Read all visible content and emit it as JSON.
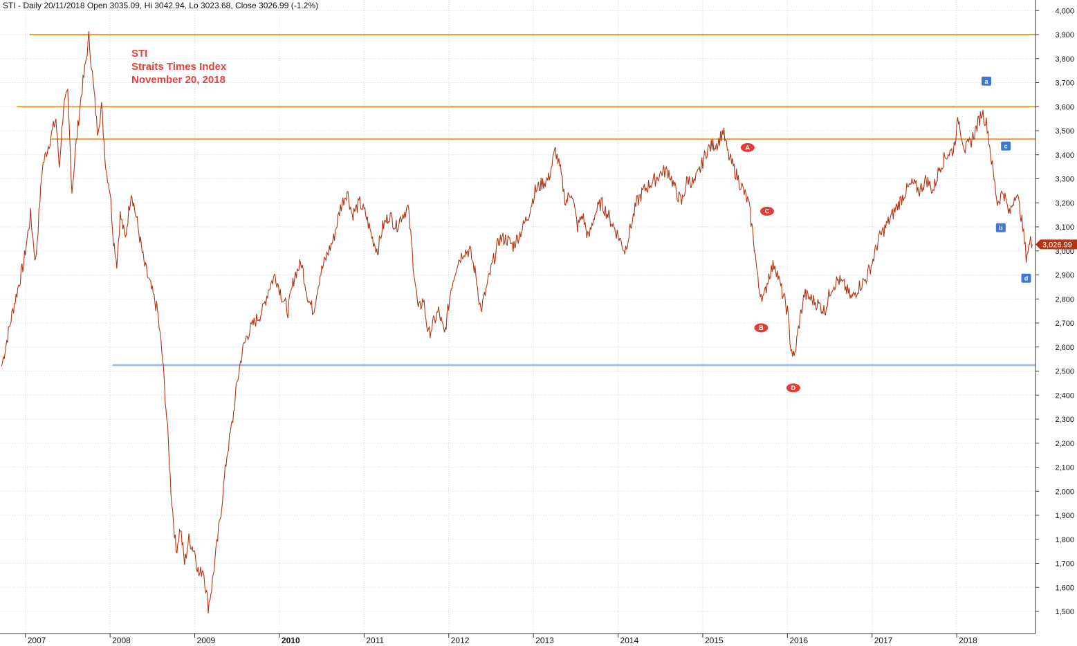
{
  "header": {
    "text": "STI - Daily 20/11/2018 Open 3035.09, Hi 3042.94, Lo 3023.68, Close 3026.99 (-1.2%)"
  },
  "annotation": {
    "lines": [
      "STI",
      "Straits Times Index",
      "November 20, 2018"
    ],
    "color": "#e8403a"
  },
  "colors": {
    "price": "#b03513",
    "resistance": "#f29a3c",
    "support": "#a3bde0",
    "grid": "#d6d6d6",
    "wave_marker_upper": "#e23c38",
    "wave_marker_lower": "#3f78d4"
  },
  "chart_data": {
    "type": "line",
    "y_axis": {
      "position": "right",
      "min": 1400,
      "max": 4000,
      "ticks": [
        1500,
        1600,
        1700,
        1800,
        1900,
        2000,
        2100,
        2200,
        2300,
        2400,
        2500,
        2600,
        2700,
        2800,
        2900,
        3000,
        3100,
        3200,
        3300,
        3400,
        3500,
        3600,
        3700,
        3800,
        3900,
        4000
      ],
      "tick_labels": [
        "1,500",
        "1,600",
        "1,700",
        "1,800",
        "1,900",
        "2,000",
        "2,100",
        "2,200",
        "2,300",
        "2,400",
        "2,500",
        "2,600",
        "2,700",
        "2,800",
        "2,900",
        "3,000",
        "3,100",
        "3,200",
        "3,300",
        "3,400",
        "3,500",
        "3,600",
        "3,700",
        "3,800",
        "3,900",
        "4,000"
      ]
    },
    "x_axis": {
      "min": 2006.7,
      "max": 2018.93,
      "ticks": [
        {
          "value": 2007,
          "label": "2007",
          "bold": false
        },
        {
          "value": 2008,
          "label": "2008",
          "bold": false
        },
        {
          "value": 2009,
          "label": "2009",
          "bold": false
        },
        {
          "value": 2010,
          "label": "2010",
          "bold": true
        },
        {
          "value": 2011,
          "label": "2011",
          "bold": false
        },
        {
          "value": 2012,
          "label": "2012",
          "bold": false
        },
        {
          "value": 2013,
          "label": "2013",
          "bold": false
        },
        {
          "value": 2014,
          "label": "2014",
          "bold": false
        },
        {
          "value": 2015,
          "label": "2015",
          "bold": false
        },
        {
          "value": 2016,
          "label": "2016",
          "bold": false
        },
        {
          "value": 2017,
          "label": "2017",
          "bold": false
        },
        {
          "value": 2018,
          "label": "2018",
          "bold": false
        }
      ]
    },
    "grid": true,
    "series": [
      {
        "color": "#b03513",
        "points": [
          [
            2006.72,
            2520
          ],
          [
            2006.85,
            2750
          ],
          [
            2006.98,
            2950
          ],
          [
            2007.06,
            3150
          ],
          [
            2007.12,
            2950
          ],
          [
            2007.2,
            3350
          ],
          [
            2007.28,
            3450
          ],
          [
            2007.36,
            3550
          ],
          [
            2007.4,
            3350
          ],
          [
            2007.45,
            3600
          ],
          [
            2007.5,
            3650
          ],
          [
            2007.55,
            3250
          ],
          [
            2007.6,
            3450
          ],
          [
            2007.66,
            3650
          ],
          [
            2007.7,
            3750
          ],
          [
            2007.75,
            3890
          ],
          [
            2007.8,
            3700
          ],
          [
            2007.85,
            3500
          ],
          [
            2007.9,
            3600
          ],
          [
            2007.95,
            3350
          ],
          [
            2008.0,
            3250
          ],
          [
            2008.04,
            3050
          ],
          [
            2008.08,
            2950
          ],
          [
            2008.12,
            3150
          ],
          [
            2008.18,
            3050
          ],
          [
            2008.25,
            3250
          ],
          [
            2008.33,
            3100
          ],
          [
            2008.4,
            2950
          ],
          [
            2008.48,
            2850
          ],
          [
            2008.56,
            2750
          ],
          [
            2008.62,
            2550
          ],
          [
            2008.68,
            2250
          ],
          [
            2008.72,
            2000
          ],
          [
            2008.78,
            1750
          ],
          [
            2008.83,
            1850
          ],
          [
            2008.88,
            1700
          ],
          [
            2008.93,
            1800
          ],
          [
            2009.0,
            1750
          ],
          [
            2009.05,
            1650
          ],
          [
            2009.1,
            1680
          ],
          [
            2009.16,
            1520
          ],
          [
            2009.2,
            1600
          ],
          [
            2009.27,
            1800
          ],
          [
            2009.32,
            1950
          ],
          [
            2009.38,
            2150
          ],
          [
            2009.45,
            2300
          ],
          [
            2009.5,
            2450
          ],
          [
            2009.56,
            2580
          ],
          [
            2009.62,
            2650
          ],
          [
            2009.7,
            2700
          ],
          [
            2009.8,
            2750
          ],
          [
            2009.88,
            2850
          ],
          [
            2009.95,
            2900
          ],
          [
            2010.04,
            2800
          ],
          [
            2010.1,
            2750
          ],
          [
            2010.18,
            2900
          ],
          [
            2010.26,
            2950
          ],
          [
            2010.34,
            2800
          ],
          [
            2010.4,
            2750
          ],
          [
            2010.48,
            2900
          ],
          [
            2010.56,
            2980
          ],
          [
            2010.64,
            3050
          ],
          [
            2010.72,
            3180
          ],
          [
            2010.8,
            3250
          ],
          [
            2010.86,
            3150
          ],
          [
            2010.95,
            3200
          ],
          [
            2011.02,
            3150
          ],
          [
            2011.1,
            3050
          ],
          [
            2011.16,
            3000
          ],
          [
            2011.22,
            3100
          ],
          [
            2011.3,
            3150
          ],
          [
            2011.38,
            3100
          ],
          [
            2011.45,
            3150
          ],
          [
            2011.52,
            3180
          ],
          [
            2011.58,
            2950
          ],
          [
            2011.64,
            2750
          ],
          [
            2011.7,
            2800
          ],
          [
            2011.76,
            2650
          ],
          [
            2011.82,
            2700
          ],
          [
            2011.88,
            2750
          ],
          [
            2011.95,
            2650
          ],
          [
            2012.03,
            2850
          ],
          [
            2012.1,
            2950
          ],
          [
            2012.18,
            3000
          ],
          [
            2012.25,
            3000
          ],
          [
            2012.32,
            2900
          ],
          [
            2012.38,
            2750
          ],
          [
            2012.45,
            2850
          ],
          [
            2012.52,
            2950
          ],
          [
            2012.6,
            3050
          ],
          [
            2012.68,
            3050
          ],
          [
            2012.76,
            3020
          ],
          [
            2012.85,
            3080
          ],
          [
            2012.94,
            3150
          ],
          [
            2013.02,
            3250
          ],
          [
            2013.1,
            3280
          ],
          [
            2013.18,
            3300
          ],
          [
            2013.26,
            3420
          ],
          [
            2013.32,
            3330
          ],
          [
            2013.38,
            3200
          ],
          [
            2013.45,
            3250
          ],
          [
            2013.52,
            3100
          ],
          [
            2013.58,
            3150
          ],
          [
            2013.65,
            3050
          ],
          [
            2013.72,
            3150
          ],
          [
            2013.8,
            3200
          ],
          [
            2013.88,
            3150
          ],
          [
            2013.95,
            3100
          ],
          [
            2014.02,
            3050
          ],
          [
            2014.08,
            3000
          ],
          [
            2014.15,
            3100
          ],
          [
            2014.22,
            3200
          ],
          [
            2014.3,
            3250
          ],
          [
            2014.38,
            3280
          ],
          [
            2014.45,
            3300
          ],
          [
            2014.52,
            3330
          ],
          [
            2014.6,
            3330
          ],
          [
            2014.68,
            3250
          ],
          [
            2014.75,
            3200
          ],
          [
            2014.82,
            3300
          ],
          [
            2014.9,
            3280
          ],
          [
            2014.98,
            3350
          ],
          [
            2015.05,
            3420
          ],
          [
            2015.12,
            3440
          ],
          [
            2015.18,
            3450
          ],
          [
            2015.24,
            3500
          ],
          [
            2015.3,
            3400
          ],
          [
            2015.36,
            3350
          ],
          [
            2015.42,
            3300
          ],
          [
            2015.48,
            3250
          ],
          [
            2015.54,
            3200
          ],
          [
            2015.6,
            3050
          ],
          [
            2015.66,
            2850
          ],
          [
            2015.72,
            2800
          ],
          [
            2015.78,
            2900
          ],
          [
            2015.85,
            2950
          ],
          [
            2015.92,
            2850
          ],
          [
            2016.0,
            2750
          ],
          [
            2016.04,
            2600
          ],
          [
            2016.08,
            2550
          ],
          [
            2016.14,
            2700
          ],
          [
            2016.2,
            2820
          ],
          [
            2016.28,
            2800
          ],
          [
            2016.36,
            2780
          ],
          [
            2016.44,
            2750
          ],
          [
            2016.52,
            2850
          ],
          [
            2016.6,
            2880
          ],
          [
            2016.68,
            2850
          ],
          [
            2016.76,
            2800
          ],
          [
            2016.84,
            2850
          ],
          [
            2016.92,
            2880
          ],
          [
            2017.0,
            2950
          ],
          [
            2017.08,
            3050
          ],
          [
            2017.16,
            3100
          ],
          [
            2017.24,
            3150
          ],
          [
            2017.32,
            3200
          ],
          [
            2017.4,
            3250
          ],
          [
            2017.48,
            3280
          ],
          [
            2017.56,
            3250
          ],
          [
            2017.64,
            3300
          ],
          [
            2017.72,
            3250
          ],
          [
            2017.8,
            3350
          ],
          [
            2017.88,
            3400
          ],
          [
            2017.96,
            3420
          ],
          [
            2018.02,
            3550
          ],
          [
            2018.06,
            3480
          ],
          [
            2018.1,
            3420
          ],
          [
            2018.16,
            3450
          ],
          [
            2018.22,
            3500
          ],
          [
            2018.3,
            3580
          ],
          [
            2018.36,
            3520
          ],
          [
            2018.42,
            3350
          ],
          [
            2018.48,
            3200
          ],
          [
            2018.55,
            3250
          ],
          [
            2018.62,
            3150
          ],
          [
            2018.7,
            3250
          ],
          [
            2018.76,
            3150
          ],
          [
            2018.82,
            2980
          ],
          [
            2018.88,
            3050
          ],
          [
            2018.89,
            3026.99
          ]
        ]
      }
    ],
    "reference_lines": [
      {
        "value": 3900,
        "x_start": 2007.05,
        "color": "#f29a3c"
      },
      {
        "value": 3600,
        "x_start": 2006.9,
        "color": "#f29a3c"
      },
      {
        "value": 3465,
        "x_start": 2007.3,
        "color": "#f29a3c"
      },
      {
        "value": 2525,
        "x_start": 2008.03,
        "color": "#a3bde0"
      }
    ],
    "wave_markers": [
      {
        "label": "A",
        "x": 2015.53,
        "y": 3430,
        "style": "red"
      },
      {
        "label": "B",
        "x": 2015.69,
        "y": 2680,
        "style": "red"
      },
      {
        "label": "C",
        "x": 2015.76,
        "y": 3165,
        "style": "red"
      },
      {
        "label": "D",
        "x": 2016.07,
        "y": 2430,
        "style": "red"
      },
      {
        "label": "a",
        "x": 2018.35,
        "y": 3705,
        "style": "blue"
      },
      {
        "label": "b",
        "x": 2018.52,
        "y": 3095,
        "style": "blue"
      },
      {
        "label": "c",
        "x": 2018.58,
        "y": 3435,
        "style": "blue"
      },
      {
        "label": "d",
        "x": 2018.82,
        "y": 2885,
        "style": "blue"
      }
    ],
    "last_value": {
      "value": 3026.99,
      "label": "3,026.99"
    }
  }
}
